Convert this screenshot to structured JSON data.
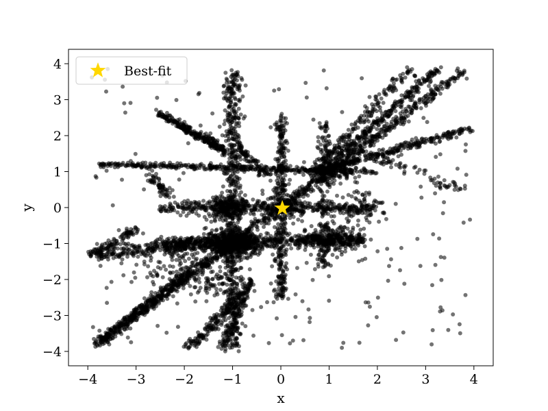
{
  "chart_data": {
    "type": "scatter",
    "title": "",
    "xlabel": "x",
    "ylabel": "y",
    "xlim": [
      -4.4,
      4.4
    ],
    "ylim": [
      -4.4,
      4.4
    ],
    "x_ticks": [
      -4,
      -3,
      -2,
      -1,
      0,
      1,
      2,
      3,
      4
    ],
    "y_ticks": [
      -4,
      -3,
      -2,
      -1,
      0,
      1,
      2,
      3,
      4
    ],
    "x_tick_labels": [
      "−4",
      "−3",
      "−2",
      "−1",
      "0",
      "1",
      "2",
      "3",
      "4"
    ],
    "y_tick_labels": [
      "−4",
      "−3",
      "−2",
      "−1",
      "0",
      "1",
      "2",
      "3",
      "4"
    ],
    "grid": false,
    "legend": {
      "placement": "top-left",
      "entries": [
        "Best-fit"
      ]
    },
    "point_color": "#000000",
    "point_opacity": 0.55,
    "best_fit_color": "#FFD700",
    "series": [
      {
        "name": "Best-fit",
        "marker": "star",
        "points": [
          [
            0.03,
            -0.02
          ]
        ]
      }
    ],
    "structures": [
      {
        "kind": "segment",
        "from": [
          -3.8,
          -3.8
        ],
        "to": [
          3.8,
          3.8
        ],
        "count": 900,
        "spread": 0.06
      },
      {
        "kind": "segment",
        "from": [
          -2.5,
          -1.0
        ],
        "to": [
          1.7,
          -0.9
        ],
        "count": 650,
        "spread": 0.09
      },
      {
        "kind": "segment",
        "from": [
          -1.0,
          -4.0
        ],
        "to": [
          -1.0,
          3.8
        ],
        "count": 600,
        "spread": 0.09
      },
      {
        "kind": "segment",
        "from": [
          -3.8,
          1.2
        ],
        "to": [
          2.0,
          1.0
        ],
        "count": 380,
        "spread": 0.04
      },
      {
        "kind": "segment",
        "from": [
          -2.5,
          0.0
        ],
        "to": [
          1.9,
          0.0
        ],
        "count": 380,
        "spread": 0.08
      },
      {
        "kind": "segment",
        "from": [
          -3.9,
          -1.3
        ],
        "to": [
          -1.2,
          -1.0
        ],
        "count": 260,
        "spread": 0.09
      },
      {
        "kind": "segment",
        "from": [
          0.0,
          -2.5
        ],
        "to": [
          0.0,
          2.5
        ],
        "count": 350,
        "spread": 0.06
      },
      {
        "kind": "segment",
        "from": [
          -2.5,
          2.6
        ],
        "to": [
          -1.2,
          1.6
        ],
        "count": 220,
        "spread": 0.05
      },
      {
        "kind": "segment",
        "from": [
          -3.9,
          -1.3
        ],
        "to": [
          -3.0,
          -0.6
        ],
        "count": 90,
        "spread": 0.07
      },
      {
        "kind": "segment",
        "from": [
          -3.8,
          -3.8
        ],
        "to": [
          -1.8,
          -1.7
        ],
        "count": 260,
        "spread": 0.07
      },
      {
        "kind": "segment",
        "from": [
          -1.9,
          -3.9
        ],
        "to": [
          -0.8,
          -2.4
        ],
        "count": 170,
        "spread": 0.06
      },
      {
        "kind": "segment",
        "from": [
          -1.2,
          -3.9
        ],
        "to": [
          -0.6,
          -2.0
        ],
        "count": 110,
        "spread": 0.05
      },
      {
        "kind": "segment",
        "from": [
          0.8,
          1.0
        ],
        "to": [
          3.9,
          2.2
        ],
        "count": 280,
        "spread": 0.05
      },
      {
        "kind": "segment",
        "from": [
          1.0,
          1.2
        ],
        "to": [
          3.3,
          3.9
        ],
        "count": 260,
        "spread": 0.05
      },
      {
        "kind": "segment",
        "from": [
          0.6,
          0.9
        ],
        "to": [
          2.7,
          3.9
        ],
        "count": 160,
        "spread": 0.06
      },
      {
        "kind": "segment",
        "from": [
          -0.9,
          1.7
        ],
        "to": [
          -0.3,
          0.9
        ],
        "count": 80,
        "spread": 0.05
      },
      {
        "kind": "segment",
        "from": [
          -2.7,
          0.9
        ],
        "to": [
          -2.3,
          0.3
        ],
        "count": 60,
        "spread": 0.06
      },
      {
        "kind": "segment",
        "from": [
          0.9,
          -1.7
        ],
        "to": [
          0.9,
          2.4
        ],
        "count": 170,
        "spread": 0.07
      },
      {
        "kind": "segment",
        "from": [
          1.1,
          1.8
        ],
        "to": [
          3.8,
          0.5
        ],
        "count": 90,
        "spread": 0.09
      },
      {
        "kind": "segment",
        "from": [
          -1.6,
          2.0
        ],
        "to": [
          -1.1,
          1.5
        ],
        "count": 50,
        "spread": 0.06
      },
      {
        "kind": "cluster",
        "center": [
          -1.0,
          -1.0
        ],
        "spread": 0.25,
        "count": 500
      },
      {
        "kind": "cluster",
        "center": [
          -1.1,
          0.0
        ],
        "spread": 0.25,
        "count": 220
      },
      {
        "kind": "cluster",
        "center": [
          1.0,
          -0.9
        ],
        "spread": 0.3,
        "count": 200
      },
      {
        "kind": "cluster",
        "center": [
          1.0,
          1.0
        ],
        "spread": 0.2,
        "count": 140
      },
      {
        "kind": "cluster",
        "center": [
          0.0,
          0.0
        ],
        "spread": 0.25,
        "count": 120
      },
      {
        "kind": "cluster",
        "center": [
          -1.3,
          -2.1
        ],
        "spread": 0.3,
        "count": 80
      },
      {
        "kind": "cluster",
        "center": [
          1.6,
          0.0
        ],
        "spread": 0.35,
        "count": 80
      },
      {
        "kind": "cluster",
        "center": [
          -2.2,
          -1.6
        ],
        "spread": 0.45,
        "count": 100
      },
      {
        "kind": "scatter",
        "center": [
          0.0,
          0.0
        ],
        "spread": 2.8,
        "count": 260
      }
    ]
  }
}
